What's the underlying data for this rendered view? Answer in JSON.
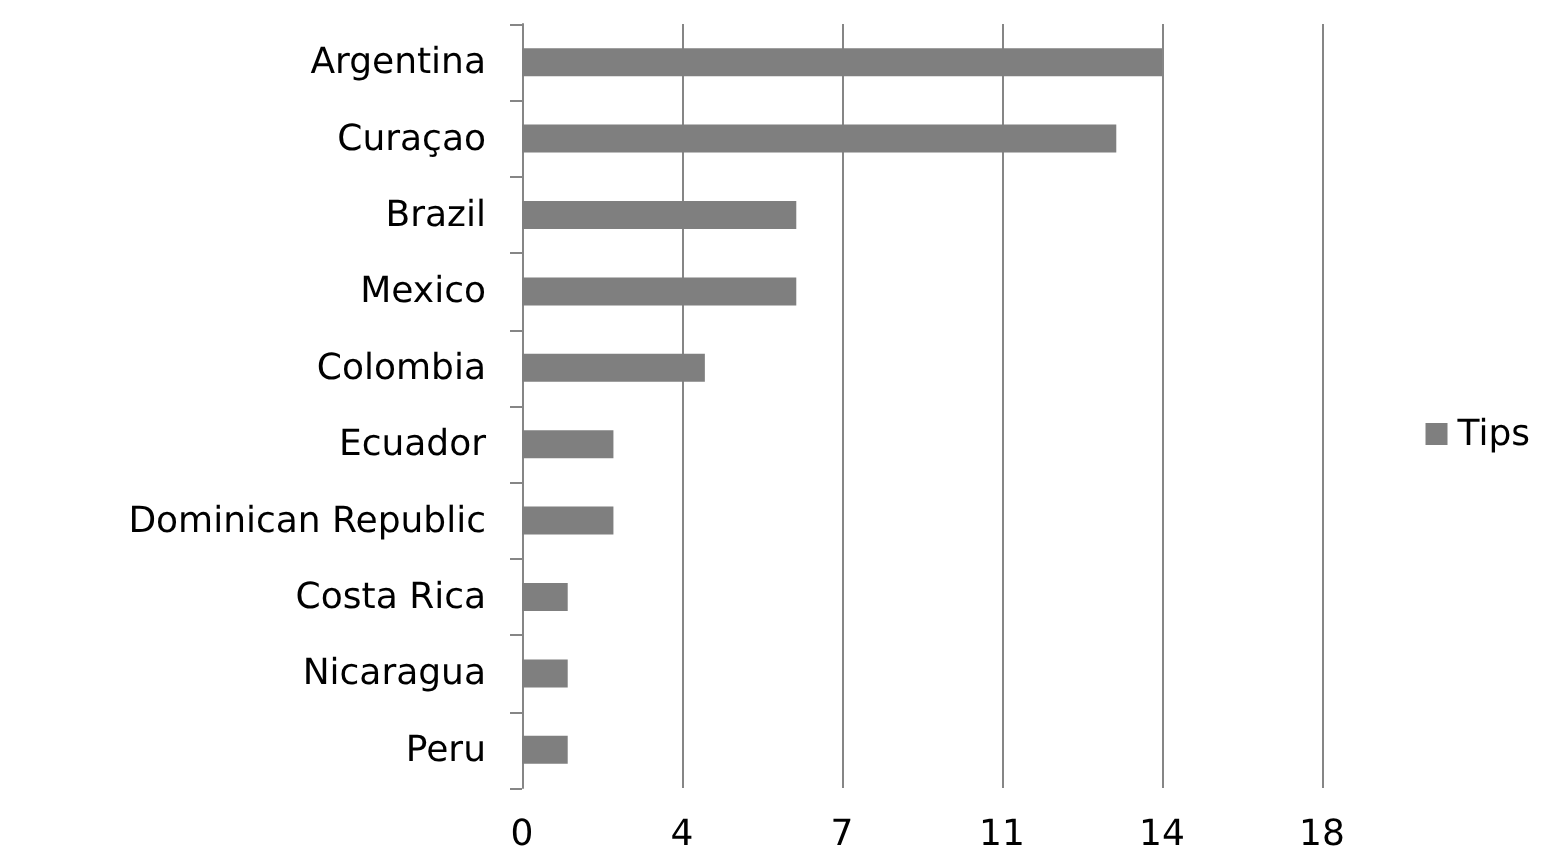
{
  "chart_data": {
    "type": "bar",
    "orientation": "horizontal",
    "categories": [
      "Argentina",
      "Curaçao",
      "Brazil",
      "Mexico",
      "Colombia",
      "Ecuador",
      "Dominican Republic",
      "Costa Rica",
      "Nicaragua",
      "Peru"
    ],
    "series": [
      {
        "name": "Tips",
        "color": "#7f7f7f",
        "values": [
          14,
          13,
          6,
          6,
          4,
          2,
          2,
          1,
          1,
          1
        ]
      }
    ],
    "xlim": [
      0,
      17.5
    ],
    "xticks": [
      0,
      {
        "value": 3.5,
        "label": "4"
      },
      7,
      {
        "value": 10.5,
        "label": "11"
      },
      14,
      {
        "value": 17.5,
        "label": "18"
      }
    ],
    "grid": "x",
    "legend": "right"
  }
}
